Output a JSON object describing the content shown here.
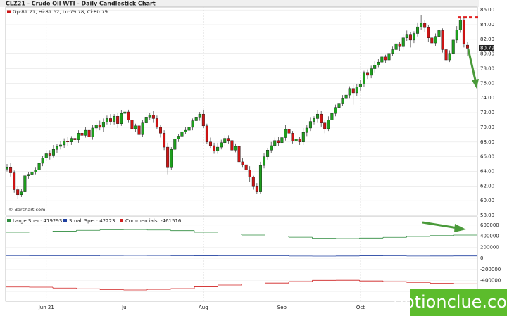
{
  "chart_data": {
    "type": "candlestick",
    "title": "CLZ21 - Crude Oil WTI - Daily Candlestick Chart",
    "info_line": "Op:81.21, Hi:81.62, Lo:79.78, Cl:80.79",
    "credit": "© Barchart.com",
    "watermark": "optionclue.com",
    "up_color": "#1e9e1e",
    "down_color": "#cc1414",
    "grid": true,
    "ylim": [
      58,
      86.4
    ],
    "yticks": [
      {
        "value": 58,
        "label": "58.00"
      },
      {
        "value": 60,
        "label": "60.00"
      },
      {
        "value": 62,
        "label": "62.00"
      },
      {
        "value": 64,
        "label": "64.00"
      },
      {
        "value": 66,
        "label": "66.00"
      },
      {
        "value": 68,
        "label": "68.00"
      },
      {
        "value": 70,
        "label": "70.00"
      },
      {
        "value": 72,
        "label": "72.00"
      },
      {
        "value": 74,
        "label": "74.00"
      },
      {
        "value": 76,
        "label": "76.00"
      },
      {
        "value": 78,
        "label": "78.00"
      },
      {
        "value": 80,
        "label": "80.00"
      },
      {
        "value": 82,
        "label": "82.00"
      },
      {
        "value": 84,
        "label": "84.00"
      },
      {
        "value": 86,
        "label": "86.00"
      }
    ],
    "categories": [
      null,
      null,
      null,
      null,
      null,
      null,
      null,
      null,
      null,
      null,
      null,
      "Jun 21",
      null,
      null,
      null,
      null,
      null,
      null,
      null,
      null,
      null,
      null,
      null,
      null,
      null,
      null,
      null,
      null,
      null,
      null,
      null,
      null,
      null,
      "Jul",
      null,
      null,
      null,
      null,
      null,
      null,
      null,
      null,
      null,
      null,
      null,
      null,
      null,
      null,
      null,
      null,
      null,
      null,
      null,
      null,
      null,
      "Aug",
      null,
      null,
      null,
      null,
      null,
      null,
      null,
      null,
      null,
      null,
      null,
      null,
      null,
      null,
      null,
      null,
      null,
      null,
      null,
      null,
      null,
      "Sep",
      null,
      null,
      null,
      null,
      null,
      null,
      null,
      null,
      null,
      null,
      null,
      null,
      null,
      null,
      null,
      null,
      null,
      null,
      null,
      null,
      null,
      "Oct",
      null,
      null,
      null,
      null,
      null,
      null,
      null,
      null,
      null,
      null,
      null,
      null,
      null,
      null,
      null,
      null,
      null,
      null,
      null,
      null,
      null,
      null,
      null,
      null,
      null,
      null,
      null,
      null,
      null,
      null
    ],
    "ohlc": [
      [
        64.3,
        65.0,
        64.0,
        64.6
      ],
      [
        64.6,
        65.2,
        63.3,
        63.8
      ],
      [
        63.8,
        64.1,
        61.1,
        61.5
      ],
      [
        61.5,
        62.0,
        60.2,
        60.8
      ],
      [
        60.8,
        61.6,
        60.5,
        61.2
      ],
      [
        61.2,
        64.0,
        60.7,
        63.4
      ],
      [
        63.4,
        63.9,
        63.0,
        63.6
      ],
      [
        63.6,
        64.4,
        63.0,
        63.9
      ],
      [
        63.9,
        64.6,
        63.6,
        64.2
      ],
      [
        64.2,
        65.7,
        63.7,
        65.1
      ],
      [
        65.1,
        66.1,
        64.7,
        65.8
      ],
      [
        65.8,
        66.9,
        65.4,
        66.4
      ],
      [
        66.4,
        66.9,
        65.6,
        66.2
      ],
      [
        66.2,
        67.6,
        65.9,
        67.0
      ],
      [
        67.0,
        67.7,
        66.5,
        67.4
      ],
      [
        67.4,
        68.1,
        67.0,
        67.6
      ],
      [
        67.6,
        68.5,
        67.2,
        68.1
      ],
      [
        68.1,
        68.7,
        67.5,
        68.0
      ],
      [
        68.0,
        68.8,
        67.6,
        68.5
      ],
      [
        68.5,
        69.0,
        67.7,
        68.3
      ],
      [
        68.3,
        69.6,
        67.9,
        69.2
      ],
      [
        69.2,
        69.7,
        68.3,
        68.9
      ],
      [
        68.9,
        70.0,
        68.6,
        69.6
      ],
      [
        69.6,
        70.2,
        68.1,
        68.7
      ],
      [
        68.7,
        70.3,
        68.3,
        69.9
      ],
      [
        69.9,
        70.6,
        69.4,
        70.3
      ],
      [
        70.3,
        70.9,
        69.6,
        70.0
      ],
      [
        70.0,
        71.2,
        69.4,
        70.7
      ],
      [
        70.7,
        71.6,
        70.4,
        71.2
      ],
      [
        71.2,
        71.8,
        70.3,
        70.8
      ],
      [
        70.8,
        71.8,
        70.4,
        71.5
      ],
      [
        71.5,
        72.0,
        69.9,
        70.5
      ],
      [
        70.5,
        72.3,
        70.2,
        71.9
      ],
      [
        71.9,
        72.7,
        71.4,
        72.1
      ],
      [
        72.1,
        72.4,
        70.6,
        71.0
      ],
      [
        71.0,
        71.5,
        69.2,
        69.8
      ],
      [
        69.8,
        70.5,
        69.4,
        70.2
      ],
      [
        70.2,
        70.8,
        68.4,
        69.0
      ],
      [
        69.0,
        71.0,
        68.7,
        70.6
      ],
      [
        70.6,
        71.9,
        70.3,
        71.4
      ],
      [
        71.4,
        72.0,
        71.0,
        71.7
      ],
      [
        71.7,
        72.2,
        70.6,
        71.2
      ],
      [
        71.2,
        71.6,
        69.7,
        70.0
      ],
      [
        70.0,
        70.3,
        68.6,
        69.2
      ],
      [
        69.2,
        69.6,
        66.9,
        67.3
      ],
      [
        67.3,
        67.9,
        63.6,
        64.6
      ],
      [
        64.6,
        67.3,
        64.2,
        67.0
      ],
      [
        67.0,
        68.8,
        66.7,
        68.4
      ],
      [
        68.4,
        69.1,
        68.0,
        68.8
      ],
      [
        68.8,
        69.9,
        68.2,
        69.4
      ],
      [
        69.4,
        70.0,
        69.1,
        69.6
      ],
      [
        69.6,
        70.5,
        69.2,
        70.0
      ],
      [
        70.0,
        71.2,
        69.6,
        70.9
      ],
      [
        70.9,
        71.8,
        70.5,
        71.4
      ],
      [
        71.4,
        72.1,
        70.9,
        71.8
      ],
      [
        71.8,
        72.3,
        69.9,
        70.2
      ],
      [
        70.2,
        70.5,
        67.7,
        68.0
      ],
      [
        68.0,
        68.6,
        67.1,
        67.5
      ],
      [
        67.5,
        67.9,
        66.4,
        66.8
      ],
      [
        66.8,
        67.9,
        66.4,
        67.3
      ],
      [
        67.3,
        68.3,
        67.0,
        67.9
      ],
      [
        67.9,
        68.9,
        67.5,
        68.5
      ],
      [
        68.5,
        68.9,
        67.8,
        68.2
      ],
      [
        68.2,
        68.7,
        66.3,
        66.9
      ],
      [
        66.9,
        67.8,
        66.6,
        67.4
      ],
      [
        67.4,
        67.8,
        64.8,
        65.3
      ],
      [
        65.3,
        65.8,
        64.6,
        64.9
      ],
      [
        64.9,
        65.2,
        63.8,
        64.2
      ],
      [
        64.2,
        64.7,
        62.6,
        63.2
      ],
      [
        63.2,
        63.4,
        61.5,
        62.0
      ],
      [
        62.0,
        62.4,
        60.9,
        61.2
      ],
      [
        61.2,
        65.3,
        60.9,
        64.8
      ],
      [
        64.8,
        66.5,
        64.4,
        66.0
      ],
      [
        66.0,
        67.2,
        65.6,
        66.9
      ],
      [
        66.9,
        68.0,
        66.5,
        67.5
      ],
      [
        67.5,
        68.6,
        67.1,
        68.2
      ],
      [
        68.2,
        68.7,
        67.5,
        67.9
      ],
      [
        67.9,
        69.0,
        67.5,
        68.6
      ],
      [
        68.6,
        70.3,
        68.2,
        69.7
      ],
      [
        69.7,
        70.2,
        68.7,
        69.2
      ],
      [
        69.2,
        69.5,
        67.8,
        68.1
      ],
      [
        68.1,
        69.0,
        67.5,
        68.4
      ],
      [
        68.4,
        68.7,
        67.6,
        68.0
      ],
      [
        68.0,
        69.9,
        67.6,
        69.3
      ],
      [
        69.3,
        70.3,
        68.8,
        69.9
      ],
      [
        69.9,
        71.4,
        69.5,
        70.8
      ],
      [
        70.8,
        71.5,
        70.4,
        71.2
      ],
      [
        71.2,
        72.3,
        70.6,
        71.8
      ],
      [
        71.8,
        72.2,
        70.1,
        70.6
      ],
      [
        70.6,
        71.0,
        69.2,
        69.8
      ],
      [
        69.8,
        71.5,
        69.5,
        71.0
      ],
      [
        71.0,
        72.2,
        70.5,
        71.9
      ],
      [
        71.9,
        73.1,
        71.5,
        72.7
      ],
      [
        72.7,
        73.8,
        72.3,
        73.2
      ],
      [
        73.2,
        74.4,
        72.9,
        74.0
      ],
      [
        74.0,
        74.9,
        73.4,
        74.4
      ],
      [
        74.4,
        75.6,
        74.0,
        75.3
      ],
      [
        75.3,
        75.8,
        73.1,
        74.7
      ],
      [
        74.7,
        75.9,
        74.3,
        75.5
      ],
      [
        75.5,
        76.5,
        75.0,
        75.9
      ],
      [
        75.9,
        77.7,
        75.5,
        77.4
      ],
      [
        77.4,
        77.9,
        76.6,
        77.1
      ],
      [
        77.1,
        78.4,
        76.7,
        78.0
      ],
      [
        78.0,
        79.0,
        77.4,
        78.5
      ],
      [
        78.5,
        79.3,
        78.2,
        78.9
      ],
      [
        78.9,
        80.2,
        78.4,
        79.6
      ],
      [
        79.6,
        79.9,
        78.8,
        79.2
      ],
      [
        79.2,
        80.5,
        78.6,
        80.0
      ],
      [
        80.0,
        81.0,
        79.7,
        80.6
      ],
      [
        80.6,
        82.0,
        80.1,
        81.4
      ],
      [
        81.4,
        81.7,
        80.4,
        81.0
      ],
      [
        81.0,
        82.7,
        80.6,
        82.2
      ],
      [
        82.2,
        83.2,
        81.8,
        82.6
      ],
      [
        82.6,
        83.0,
        80.9,
        81.9
      ],
      [
        81.9,
        83.1,
        81.5,
        82.8
      ],
      [
        82.8,
        84.3,
        82.4,
        83.7
      ],
      [
        83.7,
        85.3,
        83.3,
        84.2
      ],
      [
        84.2,
        84.6,
        83.0,
        83.6
      ],
      [
        83.6,
        84.0,
        81.6,
        82.2
      ],
      [
        82.2,
        82.6,
        80.7,
        81.5
      ],
      [
        81.5,
        82.8,
        81.1,
        82.4
      ],
      [
        82.4,
        83.7,
        81.9,
        83.2
      ],
      [
        83.2,
        83.5,
        80.2,
        80.6
      ],
      [
        80.6,
        81.0,
        78.4,
        79.2
      ],
      [
        79.2,
        80.5,
        78.9,
        80.0
      ],
      [
        80.0,
        82.4,
        79.6,
        81.9
      ],
      [
        81.9,
        83.8,
        81.5,
        83.3
      ],
      [
        83.3,
        85.0,
        82.9,
        84.6
      ],
      [
        84.6,
        84.9,
        80.9,
        81.4
      ],
      [
        81.21,
        81.62,
        79.78,
        80.79
      ]
    ],
    "resistance": 85,
    "resistance_color": "#e02020",
    "cot": {
      "type": "step",
      "ylim": [
        -775000,
        750000
      ],
      "yticks": [
        600000,
        400000,
        200000,
        0,
        -200000,
        -400000,
        -600000
      ],
      "series": [
        {
          "name": "Large Spec: 419293",
          "color": "#2e8b3e",
          "values": [
            470000,
            475000,
            490000,
            505000,
            515000,
            520000,
            512000,
            500000,
            470000,
            440000,
            420000,
            400000,
            380000,
            360000,
            355000,
            365000,
            378000,
            395000,
            410000,
            419293
          ]
        },
        {
          "name": "Small Spec: 42223",
          "color": "#2040a0",
          "values": [
            48000,
            46000,
            47000,
            45000,
            50000,
            52000,
            49000,
            47000,
            44000,
            43000,
            45000,
            47000,
            40000,
            38000,
            41000,
            44000,
            43000,
            40000,
            41000,
            42223
          ]
        },
        {
          "name": "Commercials: -461516",
          "color": "#d02020",
          "values": [
            -518000,
            -521000,
            -537000,
            -550000,
            -565000,
            -572000,
            -561000,
            -547000,
            -514000,
            -483000,
            -465000,
            -447000,
            -420000,
            -398000,
            -396000,
            -409000,
            -421000,
            -435000,
            -451000,
            -461516
          ]
        }
      ]
    }
  }
}
